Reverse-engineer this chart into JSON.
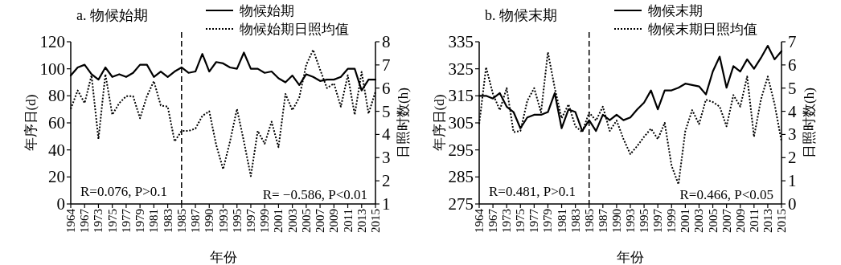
{
  "chart_data": [
    {
      "type": "line",
      "title": "a. 物候始期",
      "xlabel": "年份",
      "ylabel": "年序日(d)",
      "y2label": "日照时数(h)",
      "categories": [
        "1964",
        null,
        "1967",
        null,
        "1973",
        null,
        "1975",
        null,
        "1977",
        null,
        "1979",
        null,
        "1981",
        null,
        "1983",
        null,
        "1985",
        null,
        "1987",
        null,
        "1990",
        null,
        "1993",
        null,
        "1995",
        null,
        "1997",
        null,
        "1999",
        null,
        "2001",
        null,
        "2003",
        null,
        "2005",
        null,
        "2007",
        null,
        "2009",
        null,
        "2011",
        null,
        "2013",
        null,
        "2015"
      ],
      "ylim": [
        0,
        120
      ],
      "yticks": [
        0,
        20,
        40,
        60,
        80,
        100,
        120
      ],
      "y2lim": [
        1,
        8
      ],
      "y2ticks": [
        1,
        2,
        3,
        4,
        5,
        6,
        7,
        8
      ],
      "legend": "top",
      "series": [
        {
          "name": "物候始期",
          "color": "#000000",
          "line_style": "solid",
          "values": [
            95,
            101,
            103,
            96,
            92,
            101,
            94,
            96,
            94,
            97,
            103,
            103,
            94,
            98,
            94,
            98,
            101,
            97,
            98,
            111,
            98,
            105,
            104,
            101,
            100,
            112,
            100,
            100,
            97,
            98,
            93,
            90,
            95,
            88,
            96,
            94,
            91,
            92,
            92,
            94,
            100,
            100,
            84,
            92,
            92
          ]
        },
        {
          "name": "物候始期日照均值",
          "color": "#000000",
          "line_style": "dotted",
          "axis": "y2",
          "values": [
            5.1,
            5.9,
            5.35,
            6.55,
            3.8,
            6.6,
            4.85,
            5.35,
            5.65,
            5.65,
            4.7,
            5.65,
            6.3,
            5.25,
            5.2,
            3.7,
            4.15,
            4.15,
            4.25,
            4.8,
            5.0,
            3.55,
            2.5,
            3.7,
            5.1,
            3.7,
            2.2,
            4.15,
            3.6,
            4.55,
            3.45,
            5.75,
            5.05,
            5.6,
            7.0,
            7.65,
            6.8,
            6.0,
            6.2,
            5.2,
            6.55,
            4.85,
            6.7,
            4.9,
            5.85
          ]
        }
      ],
      "ref_lines": [
        {
          "axis": "x",
          "value": "1985",
          "line_style": "dashed",
          "color": "#000000"
        }
      ],
      "annotations": [
        "R=0.076, P>0.1",
        "R= −0.586, P<0.01"
      ]
    },
    {
      "type": "line",
      "title": "b. 物候末期",
      "xlabel": "年份",
      "ylabel": "年序日(d)",
      "y2label": "日照时数(h)",
      "categories": [
        "1964",
        null,
        "1967",
        null,
        "1973",
        null,
        "1975",
        null,
        "1977",
        null,
        "1979",
        null,
        "1981",
        null,
        "1983",
        null,
        "1985",
        null,
        "1987",
        null,
        "1990",
        null,
        "1993",
        null,
        "1995",
        null,
        "1997",
        null,
        "1999",
        null,
        "2001",
        null,
        "2003",
        null,
        "2005",
        null,
        "2007",
        null,
        "2009",
        null,
        "2011",
        null,
        "2013",
        null,
        "2015"
      ],
      "ylim": [
        275,
        335
      ],
      "yticks": [
        275,
        285,
        295,
        305,
        315,
        325,
        335
      ],
      "y2lim": [
        0,
        7
      ],
      "y2ticks": [
        0,
        1,
        2,
        3,
        4,
        5,
        6,
        7
      ],
      "legend": "top",
      "series": [
        {
          "name": "物候末期",
          "color": "#000000",
          "line_style": "solid",
          "values": [
            315,
            315,
            314,
            316,
            311,
            309,
            303,
            307,
            308,
            308,
            309,
            316,
            303,
            310,
            309,
            302,
            306,
            302,
            308,
            306,
            308,
            306,
            307,
            310,
            312.5,
            317,
            310,
            317,
            317,
            318,
            319.5,
            319,
            318.5,
            315.5,
            324,
            329.5,
            318,
            326,
            324,
            328.5,
            325,
            329,
            333.5,
            328.5,
            331.5
          ]
        },
        {
          "name": "物候末期日照均值",
          "color": "#000000",
          "line_style": "dotted",
          "axis": "y2",
          "values": [
            3.45,
            5.9,
            4.75,
            4.05,
            5.0,
            3.1,
            3.15,
            4.45,
            5.0,
            3.95,
            6.55,
            5.0,
            3.7,
            4.3,
            3.35,
            3.1,
            3.95,
            3.6,
            4.2,
            3.15,
            3.6,
            2.8,
            2.15,
            2.5,
            2.9,
            3.25,
            2.8,
            3.5,
            1.65,
            0.85,
            3.15,
            4.05,
            3.45,
            4.5,
            4.4,
            4.2,
            3.35,
            4.7,
            4.2,
            5.5,
            2.9,
            4.5,
            5.5,
            4.3,
            2.7
          ]
        }
      ],
      "ref_lines": [
        {
          "axis": "x",
          "value": "1985",
          "line_style": "dashed",
          "color": "#000000"
        }
      ],
      "annotations": [
        "R=0.481, P>0.1",
        "R=0.466, P<0.05"
      ]
    }
  ]
}
